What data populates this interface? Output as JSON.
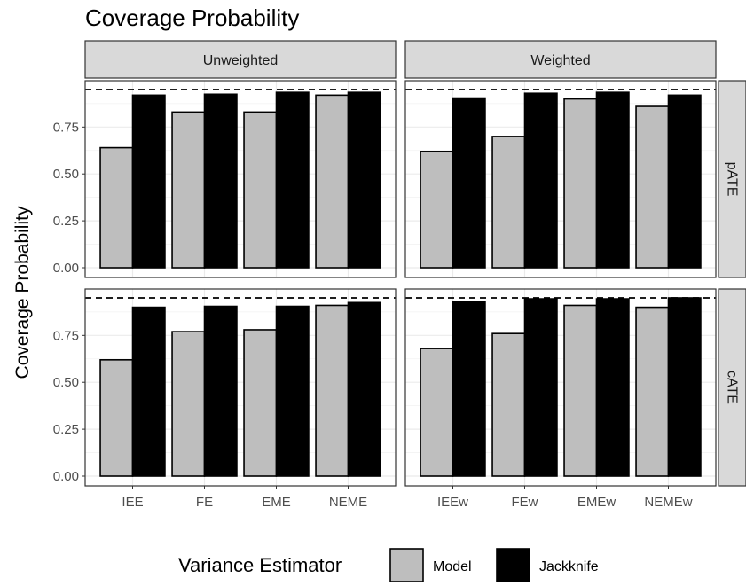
{
  "chart_data": {
    "type": "bar",
    "title": "Coverage Probability",
    "ylabel": "Coverage Probability",
    "xlabel": "",
    "ylim": [
      0,
      0.96
    ],
    "yticks": [
      0,
      0.25,
      0.5,
      0.75
    ],
    "ytick_labels": [
      "0.00",
      "0.25",
      "0.50",
      "0.75"
    ],
    "reference_line": 0.95,
    "grid": true,
    "legend": {
      "title": "Variance Estimator",
      "placement": "bottom",
      "entries": [
        {
          "name": "Model",
          "color": "#bebebe"
        },
        {
          "name": "Jackknife",
          "color": "#000000"
        }
      ]
    },
    "column_facets": [
      "Unweighted",
      "Weighted"
    ],
    "row_facets": [
      "pATE",
      "cATE"
    ],
    "panels": [
      {
        "col": 0,
        "row": 0,
        "categories": [
          "IEE",
          "FE",
          "EME",
          "NEME"
        ],
        "series": [
          {
            "name": "Model",
            "values": [
              0.64,
              0.83,
              0.83,
              0.92
            ]
          },
          {
            "name": "Jackknife",
            "values": [
              0.92,
              0.925,
              0.935,
              0.935
            ]
          }
        ]
      },
      {
        "col": 1,
        "row": 0,
        "categories": [
          "IEEw",
          "FEw",
          "EMEw",
          "NEMEw"
        ],
        "series": [
          {
            "name": "Model",
            "values": [
              0.62,
              0.7,
              0.9,
              0.86
            ]
          },
          {
            "name": "Jackknife",
            "values": [
              0.905,
              0.93,
              0.935,
              0.92
            ]
          }
        ]
      },
      {
        "col": 0,
        "row": 1,
        "categories": [
          "IEE",
          "FE",
          "EME",
          "NEME"
        ],
        "series": [
          {
            "name": "Model",
            "values": [
              0.62,
              0.77,
              0.78,
              0.91
            ]
          },
          {
            "name": "Jackknife",
            "values": [
              0.9,
              0.905,
              0.905,
              0.925
            ]
          }
        ]
      },
      {
        "col": 1,
        "row": 1,
        "categories": [
          "IEEw",
          "FEw",
          "EMEw",
          "NEMEw"
        ],
        "series": [
          {
            "name": "Model",
            "values": [
              0.68,
              0.76,
              0.91,
              0.9
            ]
          },
          {
            "name": "Jackknife",
            "values": [
              0.93,
              0.945,
              0.945,
              0.95
            ]
          }
        ]
      }
    ]
  }
}
